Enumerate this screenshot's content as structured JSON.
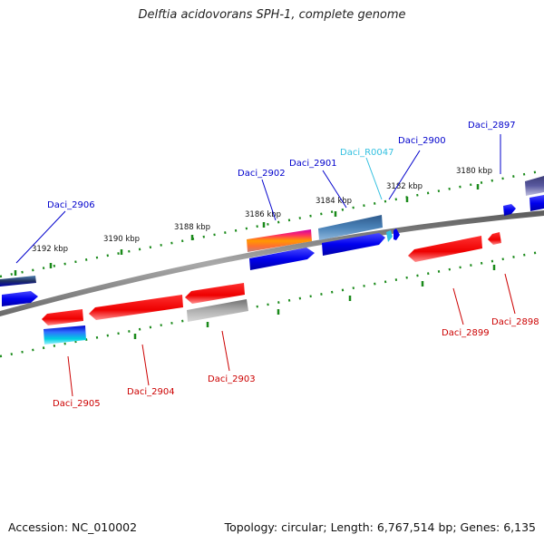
{
  "title": "Delftia acidovorans SPH-1, complete genome",
  "footer": {
    "accession": "Accession: NC_010002",
    "summary": "Topology: circular; Length: 6,767,514 bp; Genes: 6,135"
  },
  "colors": {
    "backbone": "#808080",
    "tick_marks": "#1a8a1a",
    "forward_label": "#0000cc",
    "reverse_label": "#cc0000",
    "rna_label": "#33c0e0"
  },
  "scale_labels": [
    "3180 kbp",
    "3182 kbp",
    "3184 kbp",
    "3186 kbp",
    "3188 kbp",
    "3190 kbp",
    "3192 kbp"
  ],
  "genes": [
    {
      "id": "g2897",
      "label": "Daci_2897",
      "strand": "forward"
    },
    {
      "id": "g2900",
      "label": "Daci_2900",
      "strand": "forward"
    },
    {
      "id": "gR0047",
      "label": "Daci_R0047",
      "strand": "rna"
    },
    {
      "id": "g2901",
      "label": "Daci_2901",
      "strand": "forward"
    },
    {
      "id": "g2902",
      "label": "Daci_2902",
      "strand": "forward"
    },
    {
      "id": "g2906",
      "label": "Daci_2906",
      "strand": "forward"
    },
    {
      "id": "g2898",
      "label": "Daci_2898",
      "strand": "reverse"
    },
    {
      "id": "g2899",
      "label": "Daci_2899",
      "strand": "reverse"
    },
    {
      "id": "g2903",
      "label": "Daci_2903",
      "strand": "reverse"
    },
    {
      "id": "g2904",
      "label": "Daci_2904",
      "strand": "reverse"
    },
    {
      "id": "g2905",
      "label": "Daci_2905",
      "strand": "reverse"
    }
  ]
}
